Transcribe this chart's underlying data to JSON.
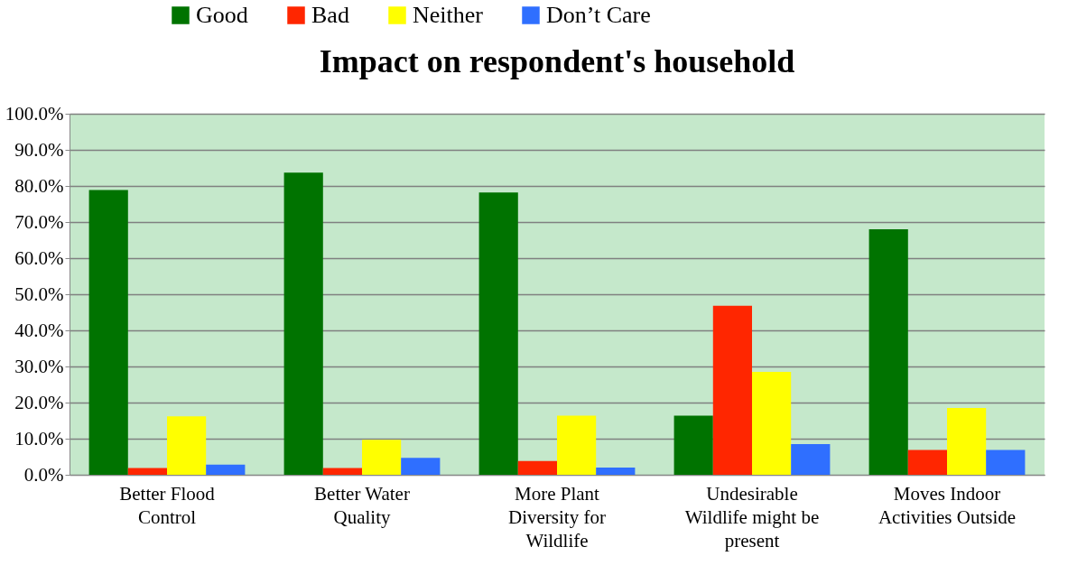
{
  "chart_data": {
    "type": "bar",
    "title": "Impact on respondent's household",
    "categories": [
      "Better Flood Control",
      "Better Water Quality",
      "More Plant Diversity for Wildlife",
      "Undesirable Wildlife might be present",
      "Moves Indoor Activities Outside"
    ],
    "series": [
      {
        "name": "Good",
        "color": "#007300",
        "values": [
          78.9,
          83.7,
          78.2,
          16.4,
          68.0
        ]
      },
      {
        "name": "Bad",
        "color": "#ff2600",
        "values": [
          1.9,
          1.9,
          3.8,
          46.8,
          6.9
        ]
      },
      {
        "name": "Neither",
        "color": "#ffff00",
        "values": [
          16.2,
          9.7,
          16.4,
          28.5,
          18.5
        ]
      },
      {
        "name": "Don’t Care",
        "color": "#2f6fff",
        "values": [
          2.8,
          4.7,
          2.0,
          8.5,
          6.9
        ]
      }
    ],
    "ylim": [
      0,
      100
    ],
    "yticks": [
      {
        "value": 0,
        "label": "0.0%"
      },
      {
        "value": 10,
        "label": "10.0%"
      },
      {
        "value": 20,
        "label": "20.0%"
      },
      {
        "value": 30,
        "label": "30.0%"
      },
      {
        "value": 40,
        "label": "40.0%"
      },
      {
        "value": 50,
        "label": "50.0%"
      },
      {
        "value": 60,
        "label": "60.0%"
      },
      {
        "value": 70,
        "label": "70.0%"
      },
      {
        "value": 80,
        "label": "80.0%"
      },
      {
        "value": 90,
        "label": "90.0%"
      },
      {
        "value": 100,
        "label": "100.0%"
      }
    ],
    "grid": "y",
    "legend": "top"
  }
}
